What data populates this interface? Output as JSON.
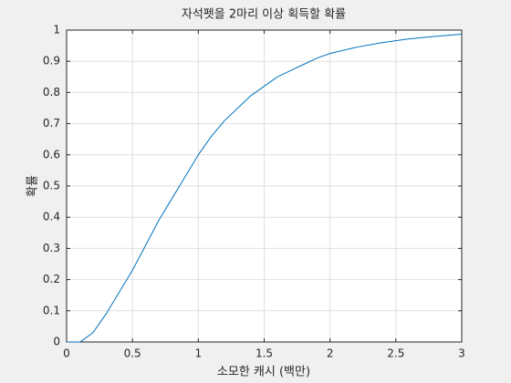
{
  "chart_data": {
    "type": "line",
    "title": "자석펫을 2마리 이상 획득할 확률",
    "x_label": "소모한 캐시 (백만)",
    "y_label": "확률",
    "x": [
      0,
      0.1,
      0.12,
      0.2,
      0.3,
      0.4,
      0.5,
      0.6,
      0.7,
      0.8,
      0.9,
      1.0,
      1.1,
      1.2,
      1.3,
      1.4,
      1.5,
      1.6,
      1.7,
      1.8,
      1.9,
      2.0,
      2.2,
      2.4,
      2.6,
      2.8,
      3.0
    ],
    "values": [
      0,
      0,
      0.005,
      0.03,
      0.09,
      0.16,
      0.23,
      0.31,
      0.39,
      0.46,
      0.53,
      0.6,
      0.66,
      0.71,
      0.75,
      0.79,
      0.82,
      0.85,
      0.87,
      0.89,
      0.91,
      0.925,
      0.945,
      0.96,
      0.972,
      0.98,
      0.987
    ],
    "color": "#0072bd",
    "xlim": [
      0,
      3
    ],
    "xticks": [
      0,
      0.5,
      1,
      1.5,
      2,
      2.5,
      3
    ],
    "ylim": [
      0,
      1
    ],
    "yticks": [
      0,
      0.1,
      0.2,
      0.3,
      0.4,
      0.5,
      0.6,
      0.7,
      0.8,
      0.9,
      1
    ],
    "grid": true
  }
}
